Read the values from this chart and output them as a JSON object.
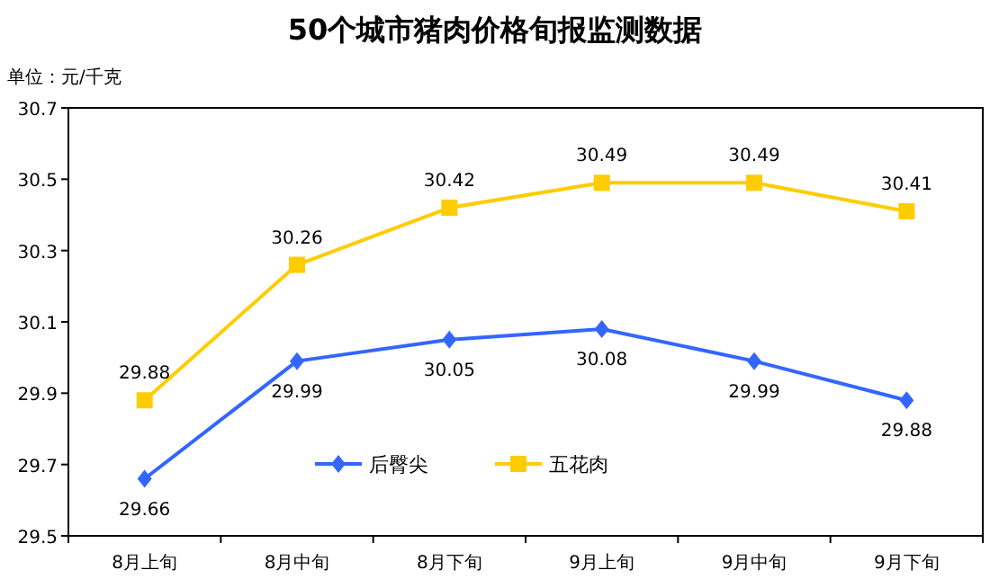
{
  "chart_data": {
    "type": "line",
    "title": "50个城市猪肉价格旬报监测数据",
    "ylabel": "单位：元/千克",
    "categories": [
      "8月上旬",
      "8月中旬",
      "8月下旬",
      "9月上旬",
      "9月中旬",
      "9月下旬"
    ],
    "series": [
      {
        "name": "后臀尖",
        "color": "#3366ff",
        "marker": "diamond",
        "values": [
          29.66,
          29.99,
          30.05,
          30.08,
          29.99,
          29.88
        ]
      },
      {
        "name": "五花肉",
        "color": "#ffcc00",
        "marker": "square",
        "values": [
          29.88,
          30.26,
          30.42,
          30.49,
          30.49,
          30.41
        ]
      }
    ],
    "ylim": [
      29.5,
      30.7
    ],
    "yticks": [
      29.5,
      29.7,
      29.9,
      30.1,
      30.3,
      30.5,
      30.7
    ],
    "data_labels": true,
    "legend": "bottom",
    "grid": false
  }
}
